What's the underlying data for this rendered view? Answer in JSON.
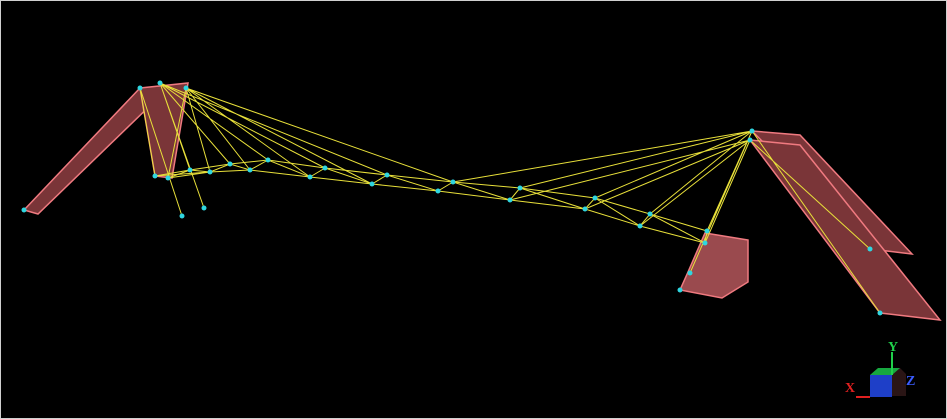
{
  "axes": {
    "y": "Y",
    "x": "X",
    "z": "Z"
  }
}
